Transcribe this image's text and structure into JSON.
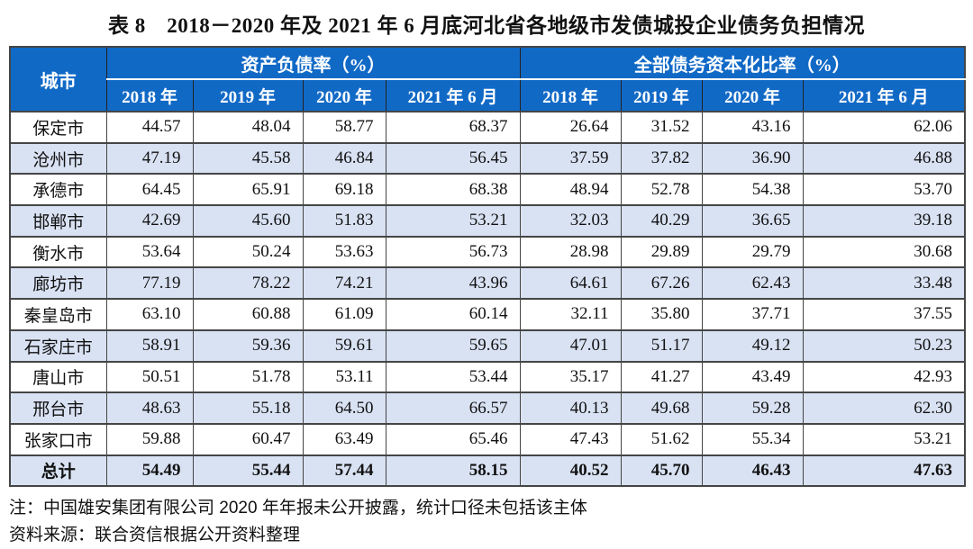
{
  "page": {
    "title": "表 8　2018－2020 年及 2021 年 6 月底河北省各地级市发债城投企业债务负担情况"
  },
  "table": {
    "header": {
      "city": "城市",
      "group1": "资产负债率（%）",
      "group2": "全部债务资本化比率（%）",
      "years": [
        "2018 年",
        "2019 年",
        "2020 年",
        "2021 年 6 月"
      ]
    },
    "rows": [
      {
        "city": "保定市",
        "alr": [
          "44.57",
          "48.04",
          "58.77",
          "68.37"
        ],
        "dcr": [
          "26.64",
          "31.52",
          "43.16",
          "62.06"
        ]
      },
      {
        "city": "沧州市",
        "alr": [
          "47.19",
          "45.58",
          "46.84",
          "56.45"
        ],
        "dcr": [
          "37.59",
          "37.82",
          "36.90",
          "46.88"
        ]
      },
      {
        "city": "承德市",
        "alr": [
          "64.45",
          "65.91",
          "69.18",
          "68.38"
        ],
        "dcr": [
          "48.94",
          "52.78",
          "54.38",
          "53.70"
        ]
      },
      {
        "city": "邯郸市",
        "alr": [
          "42.69",
          "45.60",
          "51.83",
          "53.21"
        ],
        "dcr": [
          "32.03",
          "40.29",
          "36.65",
          "39.18"
        ]
      },
      {
        "city": "衡水市",
        "alr": [
          "53.64",
          "50.24",
          "53.63",
          "56.73"
        ],
        "dcr": [
          "28.98",
          "29.89",
          "29.79",
          "30.68"
        ]
      },
      {
        "city": "廊坊市",
        "alr": [
          "77.19",
          "78.22",
          "74.21",
          "43.96"
        ],
        "dcr": [
          "64.61",
          "67.26",
          "62.43",
          "33.48"
        ]
      },
      {
        "city": "秦皇岛市",
        "alr": [
          "63.10",
          "60.88",
          "61.09",
          "60.14"
        ],
        "dcr": [
          "32.11",
          "35.80",
          "37.71",
          "37.55"
        ]
      },
      {
        "city": "石家庄市",
        "alr": [
          "58.91",
          "59.36",
          "59.61",
          "59.65"
        ],
        "dcr": [
          "47.01",
          "51.17",
          "49.12",
          "50.23"
        ]
      },
      {
        "city": "唐山市",
        "alr": [
          "50.51",
          "51.78",
          "53.11",
          "53.44"
        ],
        "dcr": [
          "35.17",
          "41.27",
          "43.49",
          "42.93"
        ]
      },
      {
        "city": "邢台市",
        "alr": [
          "48.63",
          "55.18",
          "64.50",
          "66.57"
        ],
        "dcr": [
          "40.13",
          "49.68",
          "59.28",
          "62.30"
        ]
      },
      {
        "city": "张家口市",
        "alr": [
          "59.88",
          "60.47",
          "63.49",
          "65.46"
        ],
        "dcr": [
          "47.43",
          "51.62",
          "55.34",
          "53.21"
        ]
      },
      {
        "city": "总计",
        "alr": [
          "54.49",
          "55.44",
          "57.44",
          "58.15"
        ],
        "dcr": [
          "40.52",
          "45.70",
          "46.43",
          "47.63"
        ],
        "total": true
      }
    ]
  },
  "notes": {
    "note": "注：中国雄安集团有限公司 2020 年年报未公开披露，统计口径未包括该主体",
    "source": "资料来源：联合资信根据公开资料整理"
  },
  "colors": {
    "header_bg": "#1169c6",
    "alt_row_bg": "#d9e2f3",
    "header_text": "#ffffff",
    "grid": "#454545"
  }
}
